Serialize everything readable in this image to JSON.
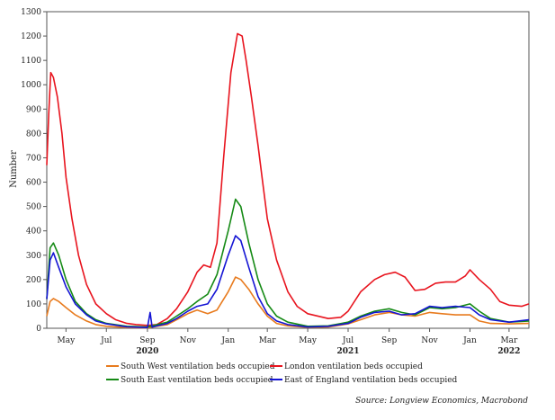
{
  "chart_data": {
    "type": "line",
    "ylabel": "Number",
    "ylim": [
      0,
      1300
    ],
    "yticks": [
      0,
      100,
      200,
      300,
      400,
      500,
      600,
      700,
      800,
      900,
      1000,
      1100,
      1200,
      1300
    ],
    "xlim": [
      "2020-04-02",
      "2022-03-31"
    ],
    "xticks": [
      {
        "date": "2020-05-01",
        "label": "May"
      },
      {
        "date": "2020-07-01",
        "label": "Jul"
      },
      {
        "date": "2020-09-01",
        "label": "Sep"
      },
      {
        "date": "2020-11-01",
        "label": "Nov"
      },
      {
        "date": "2021-01-01",
        "label": "Jan"
      },
      {
        "date": "2021-03-01",
        "label": "Mar"
      },
      {
        "date": "2021-05-01",
        "label": "May"
      },
      {
        "date": "2021-07-01",
        "label": "Jul"
      },
      {
        "date": "2021-09-01",
        "label": "Sep"
      },
      {
        "date": "2021-11-01",
        "label": "Nov"
      },
      {
        "date": "2022-01-01",
        "label": "Jan"
      },
      {
        "date": "2022-03-01",
        "label": "Mar"
      }
    ],
    "years": [
      {
        "date": "2020-09-01",
        "label": "2020"
      },
      {
        "date": "2021-07-01",
        "label": "2021"
      },
      {
        "date": "2022-03-01",
        "label": "2022"
      }
    ],
    "grid": false,
    "legend_position": "bottom",
    "source": "Source: Longview Economics, Macrobond",
    "series": [
      {
        "name": "South West ventilation beds occupied",
        "color": "#e87b1e",
        "points": [
          [
            "2020-04-02",
            50
          ],
          [
            "2020-04-07",
            110
          ],
          [
            "2020-04-12",
            122
          ],
          [
            "2020-04-20",
            110
          ],
          [
            "2020-05-01",
            85
          ],
          [
            "2020-05-15",
            55
          ],
          [
            "2020-06-01",
            30
          ],
          [
            "2020-06-15",
            15
          ],
          [
            "2020-07-01",
            8
          ],
          [
            "2020-08-01",
            3
          ],
          [
            "2020-09-01",
            2
          ],
          [
            "2020-10-01",
            15
          ],
          [
            "2020-10-15",
            35
          ],
          [
            "2020-11-01",
            60
          ],
          [
            "2020-11-15",
            75
          ],
          [
            "2020-12-01",
            60
          ],
          [
            "2020-12-15",
            75
          ],
          [
            "2021-01-01",
            150
          ],
          [
            "2021-01-12",
            210
          ],
          [
            "2021-01-20",
            200
          ],
          [
            "2021-02-01",
            160
          ],
          [
            "2021-02-15",
            100
          ],
          [
            "2021-03-01",
            50
          ],
          [
            "2021-03-15",
            20
          ],
          [
            "2021-04-01",
            10
          ],
          [
            "2021-05-01",
            4
          ],
          [
            "2021-06-01",
            5
          ],
          [
            "2021-07-01",
            18
          ],
          [
            "2021-07-20",
            35
          ],
          [
            "2021-08-10",
            55
          ],
          [
            "2021-09-01",
            65
          ],
          [
            "2021-09-20",
            55
          ],
          [
            "2021-10-10",
            50
          ],
          [
            "2021-11-01",
            65
          ],
          [
            "2021-11-20",
            60
          ],
          [
            "2021-12-10",
            55
          ],
          [
            "2022-01-01",
            55
          ],
          [
            "2022-01-15",
            30
          ],
          [
            "2022-02-01",
            20
          ],
          [
            "2022-03-01",
            18
          ],
          [
            "2022-03-31",
            20
          ]
        ]
      },
      {
        "name": "London ventilation beds occupied",
        "color": "#e8141e",
        "points": [
          [
            "2020-04-02",
            670
          ],
          [
            "2020-04-05",
            880
          ],
          [
            "2020-04-08",
            1050
          ],
          [
            "2020-04-12",
            1030
          ],
          [
            "2020-04-18",
            950
          ],
          [
            "2020-04-25",
            800
          ],
          [
            "2020-05-01",
            620
          ],
          [
            "2020-05-10",
            450
          ],
          [
            "2020-05-20",
            300
          ],
          [
            "2020-06-01",
            180
          ],
          [
            "2020-06-15",
            100
          ],
          [
            "2020-07-01",
            60
          ],
          [
            "2020-07-15",
            35
          ],
          [
            "2020-08-01",
            20
          ],
          [
            "2020-08-15",
            15
          ],
          [
            "2020-09-01",
            12
          ],
          [
            "2020-09-15",
            15
          ],
          [
            "2020-10-01",
            40
          ],
          [
            "2020-10-15",
            80
          ],
          [
            "2020-11-01",
            150
          ],
          [
            "2020-11-15",
            230
          ],
          [
            "2020-11-25",
            260
          ],
          [
            "2020-12-05",
            250
          ],
          [
            "2020-12-15",
            350
          ],
          [
            "2020-12-25",
            700
          ],
          [
            "2021-01-05",
            1050
          ],
          [
            "2021-01-15",
            1210
          ],
          [
            "2021-01-22",
            1200
          ],
          [
            "2021-01-28",
            1100
          ],
          [
            "2021-02-05",
            950
          ],
          [
            "2021-02-15",
            750
          ],
          [
            "2021-02-22",
            600
          ],
          [
            "2021-03-01",
            450
          ],
          [
            "2021-03-15",
            280
          ],
          [
            "2021-04-01",
            150
          ],
          [
            "2021-04-15",
            90
          ],
          [
            "2021-05-01",
            60
          ],
          [
            "2021-06-01",
            40
          ],
          [
            "2021-06-20",
            45
          ],
          [
            "2021-07-01",
            70
          ],
          [
            "2021-07-20",
            150
          ],
          [
            "2021-08-10",
            200
          ],
          [
            "2021-08-25",
            220
          ],
          [
            "2021-09-10",
            230
          ],
          [
            "2021-09-25",
            210
          ],
          [
            "2021-10-10",
            155
          ],
          [
            "2021-10-25",
            160
          ],
          [
            "2021-11-10",
            185
          ],
          [
            "2021-11-25",
            190
          ],
          [
            "2021-12-10",
            190
          ],
          [
            "2021-12-25",
            215
          ],
          [
            "2022-01-01",
            240
          ],
          [
            "2022-01-15",
            200
          ],
          [
            "2022-02-01",
            160
          ],
          [
            "2022-02-15",
            110
          ],
          [
            "2022-03-01",
            95
          ],
          [
            "2022-03-20",
            90
          ],
          [
            "2022-03-31",
            100
          ]
        ]
      },
      {
        "name": "South East ventilation beds occupied",
        "color": "#158a15",
        "points": [
          [
            "2020-04-02",
            120
          ],
          [
            "2020-04-07",
            330
          ],
          [
            "2020-04-12",
            350
          ],
          [
            "2020-04-20",
            300
          ],
          [
            "2020-05-01",
            200
          ],
          [
            "2020-05-15",
            110
          ],
          [
            "2020-06-01",
            60
          ],
          [
            "2020-06-15",
            35
          ],
          [
            "2020-07-01",
            20
          ],
          [
            "2020-08-01",
            8
          ],
          [
            "2020-09-01",
            5
          ],
          [
            "2020-10-01",
            25
          ],
          [
            "2020-10-15",
            50
          ],
          [
            "2020-11-01",
            80
          ],
          [
            "2020-11-15",
            110
          ],
          [
            "2020-12-01",
            140
          ],
          [
            "2020-12-15",
            220
          ],
          [
            "2021-01-01",
            400
          ],
          [
            "2021-01-12",
            530
          ],
          [
            "2021-01-20",
            500
          ],
          [
            "2021-02-01",
            350
          ],
          [
            "2021-02-15",
            200
          ],
          [
            "2021-03-01",
            100
          ],
          [
            "2021-03-15",
            50
          ],
          [
            "2021-04-01",
            25
          ],
          [
            "2021-05-01",
            8
          ],
          [
            "2021-06-01",
            10
          ],
          [
            "2021-07-01",
            25
          ],
          [
            "2021-07-20",
            50
          ],
          [
            "2021-08-10",
            70
          ],
          [
            "2021-09-01",
            80
          ],
          [
            "2021-09-20",
            65
          ],
          [
            "2021-10-10",
            55
          ],
          [
            "2021-11-01",
            85
          ],
          [
            "2021-11-20",
            80
          ],
          [
            "2021-12-10",
            85
          ],
          [
            "2022-01-01",
            100
          ],
          [
            "2022-01-15",
            70
          ],
          [
            "2022-02-01",
            40
          ],
          [
            "2022-03-01",
            25
          ],
          [
            "2022-03-31",
            30
          ]
        ]
      },
      {
        "name": "East of England ventilation beds occupied",
        "color": "#1414d4",
        "points": [
          [
            "2020-04-02",
            120
          ],
          [
            "2020-04-07",
            280
          ],
          [
            "2020-04-12",
            310
          ],
          [
            "2020-04-20",
            250
          ],
          [
            "2020-05-01",
            170
          ],
          [
            "2020-05-15",
            100
          ],
          [
            "2020-06-01",
            55
          ],
          [
            "2020-06-15",
            30
          ],
          [
            "2020-07-01",
            18
          ],
          [
            "2020-08-01",
            6
          ],
          [
            "2020-09-01",
            3
          ],
          [
            "2020-09-05",
            65
          ],
          [
            "2020-09-08",
            5
          ],
          [
            "2020-10-01",
            20
          ],
          [
            "2020-10-15",
            40
          ],
          [
            "2020-11-01",
            70
          ],
          [
            "2020-11-15",
            90
          ],
          [
            "2020-12-01",
            100
          ],
          [
            "2020-12-15",
            160
          ],
          [
            "2021-01-01",
            300
          ],
          [
            "2021-01-12",
            380
          ],
          [
            "2021-01-20",
            360
          ],
          [
            "2021-02-01",
            250
          ],
          [
            "2021-02-15",
            130
          ],
          [
            "2021-03-01",
            60
          ],
          [
            "2021-03-15",
            30
          ],
          [
            "2021-04-01",
            15
          ],
          [
            "2021-05-01",
            5
          ],
          [
            "2021-06-01",
            8
          ],
          [
            "2021-07-01",
            20
          ],
          [
            "2021-07-20",
            45
          ],
          [
            "2021-08-10",
            65
          ],
          [
            "2021-09-01",
            70
          ],
          [
            "2021-09-20",
            55
          ],
          [
            "2021-10-10",
            60
          ],
          [
            "2021-11-01",
            90
          ],
          [
            "2021-11-20",
            85
          ],
          [
            "2021-12-10",
            90
          ],
          [
            "2022-01-01",
            85
          ],
          [
            "2022-01-15",
            55
          ],
          [
            "2022-02-01",
            35
          ],
          [
            "2022-03-01",
            25
          ],
          [
            "2022-03-31",
            35
          ]
        ]
      }
    ]
  }
}
